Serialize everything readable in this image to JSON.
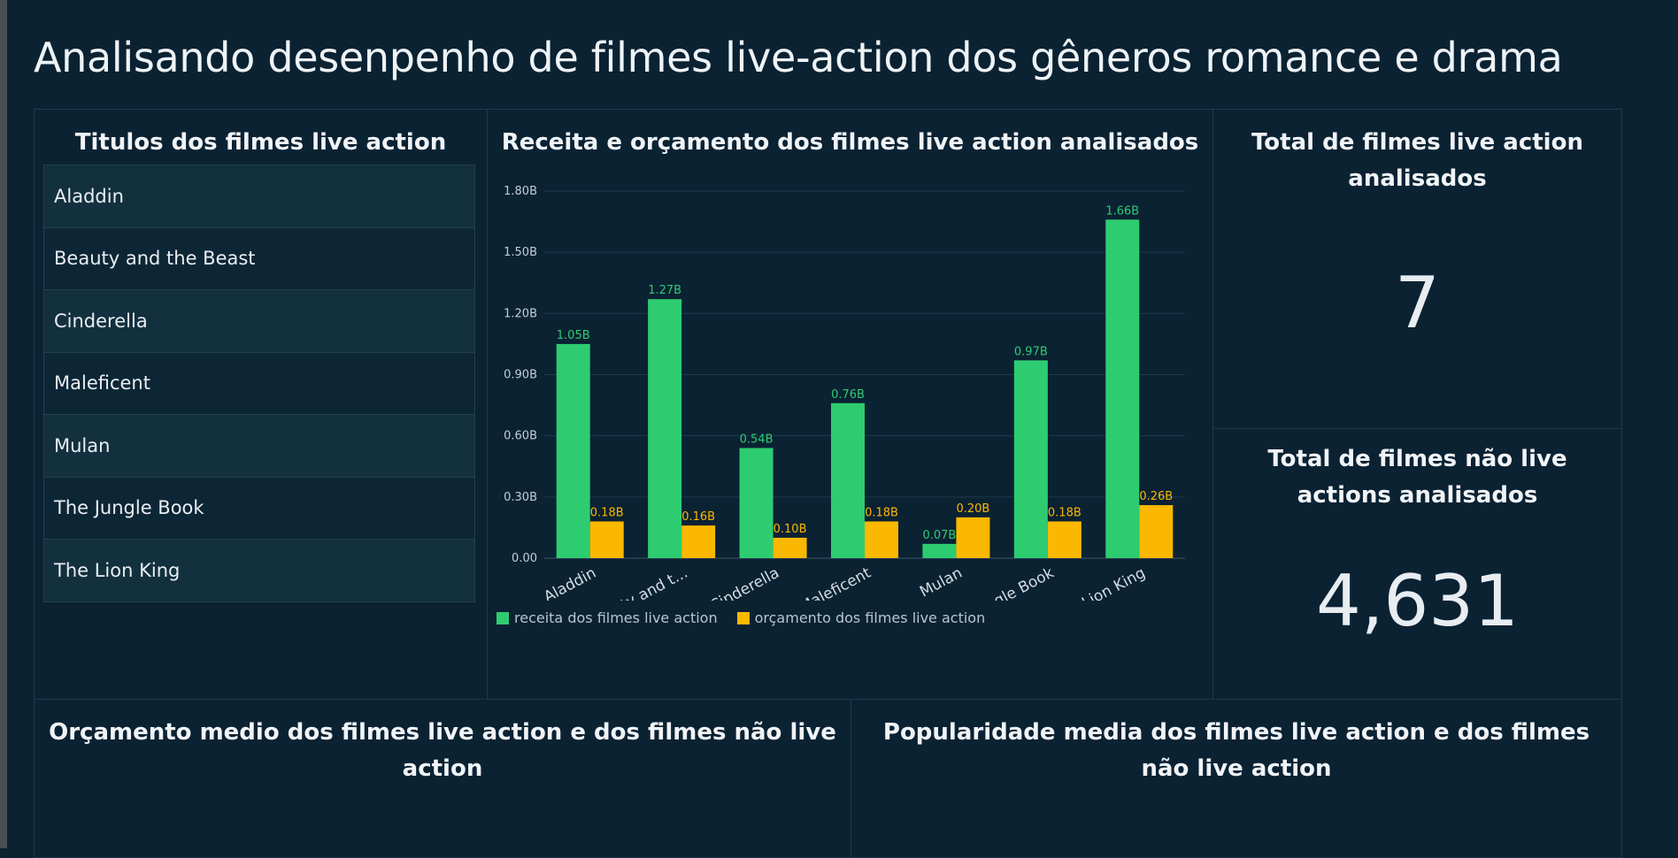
{
  "page": {
    "title": "Analisando desenpenho de filmes live-action dos gêneros romance e drama"
  },
  "list_panel": {
    "title": "Titulos dos filmes live action",
    "items": [
      "Aladdin",
      "Beauty and the Beast",
      "Cinderella",
      "Maleficent",
      "Mulan",
      "The Jungle Book",
      "The Lion King"
    ]
  },
  "kpi_live": {
    "title": "Total de filmes live action analisados",
    "value": "7"
  },
  "kpi_non_live": {
    "title": "Total de filmes não live actions analisados",
    "value": "4,631"
  },
  "bottom_left": {
    "title": "Orçamento medio dos filmes live action e dos filmes não live action"
  },
  "bottom_right": {
    "title": "Popularidade media dos filmes live action e dos filmes não live action"
  },
  "colors": {
    "revenue": "#2ecc71",
    "budget": "#fbb800",
    "background": "#0b2233"
  },
  "chart_data": {
    "type": "bar",
    "title": "Receita e orçamento dos filmes live action analisados",
    "categories": [
      "Aladdin",
      "Beauty and the Beast",
      "Cinderella",
      "Maleficent",
      "Mulan",
      "The Jungle Book",
      "The Lion King"
    ],
    "category_labels": [
      "Aladdin",
      "Beauty and t...",
      "Cinderella",
      "Maleficent",
      "Mulan",
      "The Jungle Book",
      "The Lion King"
    ],
    "series": [
      {
        "name": "receita dos filmes live action",
        "values": [
          1.05,
          1.27,
          0.54,
          0.76,
          0.07,
          0.97,
          1.66
        ],
        "labels": [
          "1.05B",
          "1.27B",
          "0.54B",
          "0.76B",
          "0.07B",
          "0.97B",
          "1.66B"
        ]
      },
      {
        "name": "orçamento dos filmes live action",
        "values": [
          0.18,
          0.16,
          0.1,
          0.18,
          0.2,
          0.18,
          0.26
        ],
        "labels": [
          "0.18B",
          "0.16B",
          "0.10B",
          "0.18B",
          "0.20B",
          "0.18B",
          "0.26B"
        ]
      }
    ],
    "yticks": [
      0,
      0.3,
      0.6,
      0.9,
      1.2,
      1.5,
      1.8
    ],
    "ytick_labels": [
      "0.00",
      "0.30B",
      "0.60B",
      "0.90B",
      "1.20B",
      "1.50B",
      "1.80B"
    ],
    "ylim": [
      0,
      1.8
    ],
    "grid": true,
    "legend_position": "bottom-left"
  }
}
